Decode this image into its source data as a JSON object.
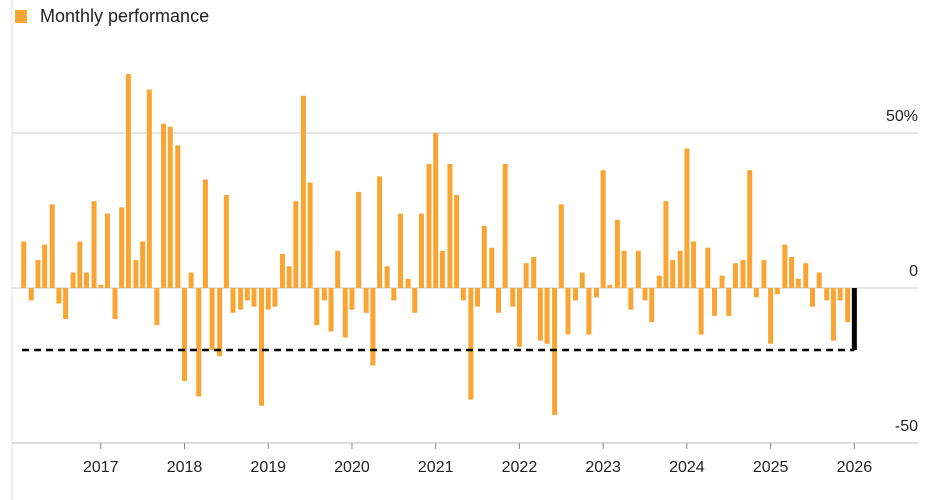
{
  "chart_data": {
    "type": "bar",
    "legend": "Monthly performance",
    "color": "#f9a533",
    "x": [
      2016.08,
      2016.17,
      2016.25,
      2016.33,
      2016.42,
      2016.5,
      2016.58,
      2016.67,
      2016.75,
      2016.83,
      2016.92,
      2017,
      2017.08,
      2017.17,
      2017.25,
      2017.33,
      2017.42,
      2017.5,
      2017.58,
      2017.67,
      2017.75,
      2017.83,
      2017.92,
      2018,
      2018.08,
      2018.17,
      2018.25,
      2018.33,
      2018.42,
      2018.5,
      2018.58,
      2018.67,
      2018.75,
      2018.83,
      2018.92,
      2019,
      2019.08,
      2019.17,
      2019.25,
      2019.33,
      2019.42,
      2019.5,
      2019.58,
      2019.67,
      2019.75,
      2019.83,
      2019.92,
      2020,
      2020.08,
      2020.17,
      2020.25,
      2020.33,
      2020.42,
      2020.5,
      2020.58,
      2020.67,
      2020.75,
      2020.83,
      2020.92,
      2021,
      2021.08,
      2021.17,
      2021.25,
      2021.33,
      2021.42,
      2021.5,
      2021.58,
      2021.67,
      2021.75,
      2021.83,
      2021.92,
      2022,
      2022.08,
      2022.17,
      2022.25,
      2022.33,
      2022.42,
      2022.5,
      2022.58,
      2022.67,
      2022.75,
      2022.83,
      2022.92,
      2023,
      2023.08,
      2023.17,
      2023.25,
      2023.33,
      2023.42,
      2023.5,
      2023.58,
      2023.67,
      2023.75,
      2023.83,
      2023.92,
      2024,
      2024.08,
      2024.17,
      2024.25,
      2024.33,
      2024.42,
      2024.5,
      2024.58,
      2024.67,
      2024.75,
      2024.83,
      2024.92,
      2025,
      2025.08,
      2025.17,
      2025.25,
      2025.33,
      2025.42,
      2025.5,
      2025.58,
      2025.67,
      2025.75,
      2025.83,
      2025.92
    ],
    "values": [
      15,
      -4,
      9,
      14,
      27,
      -5,
      -10,
      5,
      15,
      5,
      28,
      1,
      24,
      -10,
      26,
      69,
      9,
      15,
      64,
      -12,
      53,
      52,
      46,
      -30,
      5,
      -35,
      35,
      -20,
      -22,
      30,
      -8,
      -7,
      -4,
      -6,
      -38,
      -7,
      -6,
      11,
      7,
      28,
      62,
      34,
      -12,
      -4,
      -14,
      12,
      -16,
      -7,
      31,
      -8,
      -25,
      36,
      7,
      -4,
      24,
      3,
      -8,
      24,
      40,
      50,
      12,
      40,
      30,
      -4,
      -36,
      -6,
      20,
      13,
      -8,
      40,
      -6,
      -19,
      8,
      10,
      -17,
      -18,
      -41,
      27,
      -15,
      -4,
      5,
      -15,
      -3,
      38,
      1,
      22,
      12,
      -7,
      12,
      -4,
      -11,
      4,
      28,
      9,
      12,
      45,
      15,
      -15,
      13,
      -9,
      4,
      -9,
      8,
      9,
      38,
      -3,
      9,
      -18,
      -2,
      14,
      10,
      3,
      8,
      -6,
      5,
      -4,
      -17,
      -4,
      -11
    ],
    "current": {
      "x": 2026,
      "value": -20,
      "color": "#000000"
    },
    "xlim": [
      2015.94,
      2026.76
    ],
    "xticks": [
      2017,
      2018,
      2019,
      2020,
      2021,
      2022,
      2023,
      2024,
      2025,
      2026
    ],
    "ylim": [
      -50,
      75
    ],
    "yticks": [
      {
        "value": 50,
        "label": "50%"
      },
      0,
      -50
    ],
    "grid": true
  }
}
